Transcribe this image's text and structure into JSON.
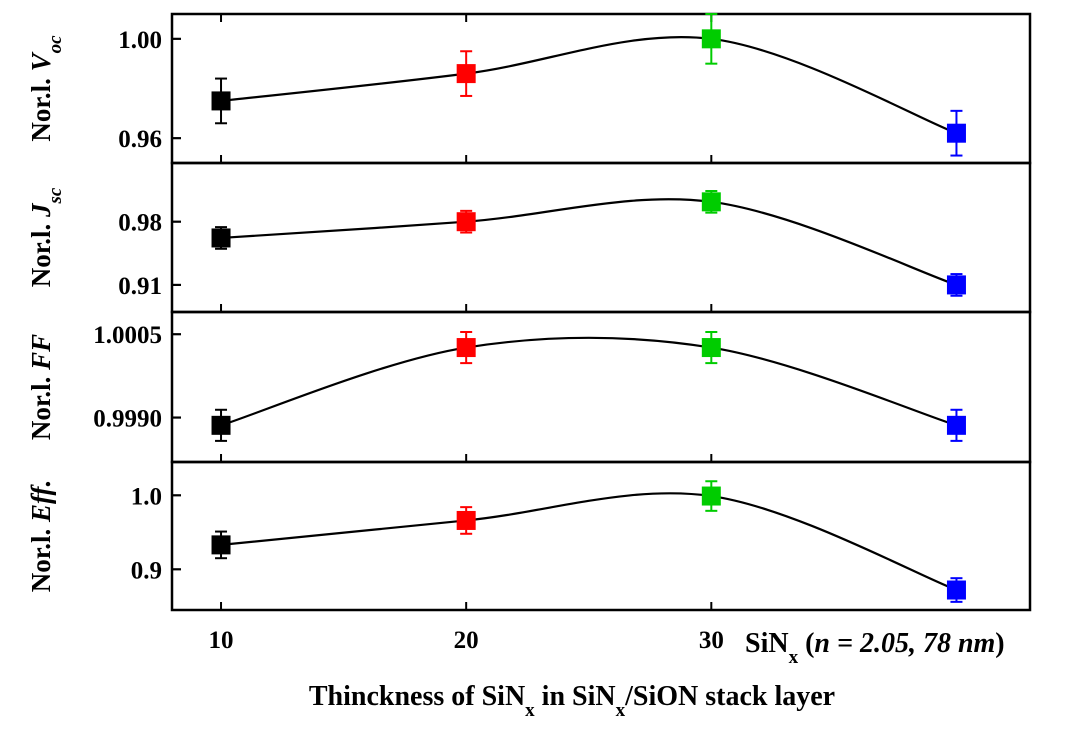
{
  "chart_data": {
    "type": "scatter",
    "x_label_parts": [
      {
        "t": "Thinckness of SiN"
      },
      {
        "t": "x",
        "sub": true
      },
      {
        "t": " in SiN"
      },
      {
        "t": "x",
        "sub": true
      },
      {
        "t": "/SiON stack layer"
      }
    ],
    "x_ticks": [
      "10",
      "20",
      "30"
    ],
    "x_tick_values": [
      10,
      20,
      30
    ],
    "xlim": [
      8,
      43
    ],
    "reference_annotation_parts": [
      {
        "t": "SiN"
      },
      {
        "t": "x",
        "sub": true
      },
      {
        "t": " ("
      },
      {
        "t": "n",
        "italic": true
      },
      {
        "t": " = 2.05, 78 nm",
        "italic": true
      },
      {
        "t": ")"
      }
    ],
    "point_colors": [
      "#000000",
      "#ff0000",
      "#00cc00",
      "#0000ff"
    ],
    "line_color": "#000000",
    "panels": [
      {
        "ylabel_parts": [
          {
            "t": "Nor.l. "
          },
          {
            "t": "V",
            "italic": true
          },
          {
            "t": "oc",
            "italic": true,
            "sub": true
          }
        ],
        "ylim": [
          0.95,
          1.01
        ],
        "y_ticks": [
          "0.96",
          "1.00"
        ],
        "y_tick_values": [
          0.96,
          1.0
        ],
        "x": [
          10,
          20,
          30,
          40
        ],
        "y": [
          0.975,
          0.986,
          1.0,
          0.962
        ],
        "err": [
          0.009,
          0.009,
          0.01,
          0.009
        ]
      },
      {
        "ylabel_parts": [
          {
            "t": "Nor.l. "
          },
          {
            "t": "J",
            "italic": true
          },
          {
            "t": "sc",
            "italic": true,
            "sub": true
          }
        ],
        "ylim": [
          0.88,
          1.045
        ],
        "y_ticks": [
          "0.91",
          "0.98"
        ],
        "y_tick_values": [
          0.91,
          0.98
        ],
        "x": [
          10,
          20,
          30,
          40
        ],
        "y": [
          0.962,
          0.98,
          1.002,
          0.91
        ],
        "err": [
          0.012,
          0.012,
          0.012,
          0.012
        ]
      },
      {
        "ylabel_parts": [
          {
            "t": "Nor.l. "
          },
          {
            "t": "FF",
            "italic": true
          }
        ],
        "ylim": [
          0.9982,
          1.0009
        ],
        "y_ticks": [
          "0.9990",
          "1.0005"
        ],
        "y_tick_values": [
          0.999,
          1.0005
        ],
        "x": [
          10,
          20,
          30,
          40
        ],
        "y": [
          0.99886,
          1.00026,
          1.00026,
          0.99886
        ],
        "err": [
          0.00028,
          0.00028,
          0.00028,
          0.00028
        ]
      },
      {
        "ylabel_parts": [
          {
            "t": "Nor.l. "
          },
          {
            "t": "Eff.",
            "italic": true
          }
        ],
        "ylim": [
          0.845,
          1.045
        ],
        "y_ticks": [
          "0.9",
          "1.0"
        ],
        "y_tick_values": [
          0.9,
          1.0
        ],
        "x": [
          10,
          20,
          30,
          40
        ],
        "y": [
          0.933,
          0.966,
          0.999,
          0.872
        ],
        "err": [
          0.018,
          0.018,
          0.02,
          0.016
        ]
      }
    ]
  }
}
